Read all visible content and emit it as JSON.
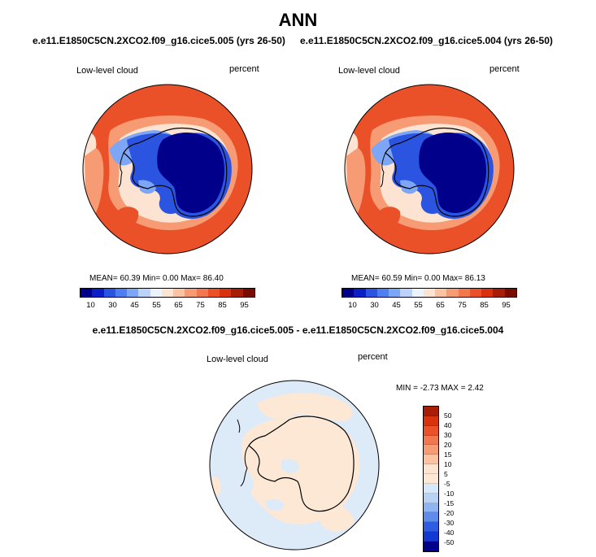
{
  "season": "ANN",
  "panels": [
    {
      "case": "e.e11.E1850C5CN.2XCO2.f09_g16.cice5.005 (yrs 26-50)",
      "variable": "Low-level cloud",
      "units": "percent",
      "stats_text": "MEAN=  60.39  Min=   0.00  Max=  86.40",
      "stats": {
        "mean": 60.39,
        "min": 0.0,
        "max": 86.4
      }
    },
    {
      "case": "e.e11.E1850C5CN.2XCO2.f09_g16.cice5.004 (yrs 26-50)",
      "variable": "Low-level cloud",
      "units": "percent",
      "stats_text": "MEAN=  60.59  Min=   0.00  Max=  86.13",
      "stats": {
        "mean": 60.59,
        "min": 0.0,
        "max": 86.13
      }
    }
  ],
  "diff_panel": {
    "title": "e.e11.E1850C5CN.2XCO2.f09_g16.cice5.005 - e.e11.E1850C5CN.2XCO2.f09_g16.cice5.004",
    "variable": "Low-level cloud",
    "units": "percent",
    "stats_text": "MIN =  -2.73 MAX =   2.42",
    "stats": {
      "min": -2.73,
      "max": 2.42
    }
  },
  "colorbar": {
    "labels": [
      "10",
      "30",
      "45",
      "55",
      "65",
      "75",
      "85",
      "95"
    ],
    "colors": [
      "#00008b",
      "#0a1fc4",
      "#2b55e0",
      "#4f7ef0",
      "#7ea6f6",
      "#bcd2fa",
      "#ecf3fd",
      "#fde3d1",
      "#fbc3a2",
      "#f79b74",
      "#f2774e",
      "#ea5128",
      "#d8320f",
      "#a81d05",
      "#7a0b00"
    ]
  },
  "diff_colorbar": {
    "labels": [
      "50",
      "40",
      "30",
      "20",
      "15",
      "10",
      "5",
      "-5",
      "-10",
      "-15",
      "-20",
      "-30",
      "-40",
      "-50"
    ],
    "colors": [
      "#a81d05",
      "#d8320f",
      "#ea5128",
      "#f2774e",
      "#f79b74",
      "#fbc3a2",
      "#fde3d1",
      "#fde8d5",
      "#d6e8fb",
      "#b8d2f6",
      "#8eb4f2",
      "#5f8cea",
      "#2f5ce0",
      "#123ad0",
      "#00008b"
    ]
  },
  "map_colors": {
    "ocean_high": "#ea5128",
    "ocean_mid": "#f79b74",
    "ocean_low": "#fde3d1",
    "ice_low": "#00008b",
    "ice_mid": "#2b55e0",
    "ice_light": "#7ea6f6",
    "diff_base": "#ddeaf8",
    "diff_pos": "#fde8d5"
  }
}
